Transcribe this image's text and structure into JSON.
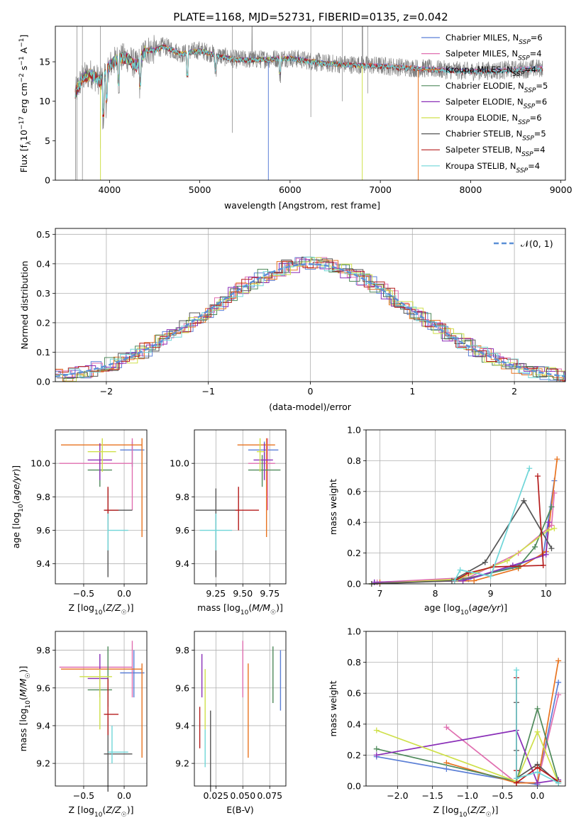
{
  "figure_title": "PLATE=1168, MJD=52731, FIBERID=0135, z=0.042",
  "colors": {
    "Chabrier MILES": "#5b7fd6",
    "Salpeter MILES": "#e06fb0",
    "Kroupa MILES": "#e8731f",
    "Chabrier ELODIE": "#4f8a5b",
    "Salpeter ELODIE": "#8a2fb8",
    "Kroupa ELODIE": "#cfe04a",
    "Chabrier STELIB": "#555555",
    "Salpeter STELIB": "#b51c1c",
    "Kroupa STELIB": "#6fd6d8",
    "data": "#808080"
  },
  "chart_data": [
    {
      "id": "spectrum",
      "type": "line",
      "xlabel": "wavelength [Angstrom, rest frame]",
      "ylabel": "Flux [f_λ10^-17 erg cm^-2 s^-1 A^-1]",
      "xlim": [
        3400,
        9050
      ],
      "ylim": [
        0,
        19.5
      ],
      "xticks": [
        4000,
        5000,
        6000,
        7000,
        8000,
        9000
      ],
      "yticks": [
        0,
        5,
        10,
        15
      ],
      "grid": false,
      "legend_position": "right",
      "series": [
        {
          "name": "Chabrier MILES",
          "nssp": "6"
        },
        {
          "name": "Salpeter MILES",
          "nssp": "4"
        },
        {
          "name": "Kroupa MILES",
          "nssp": "4"
        },
        {
          "name": "Chabrier ELODIE",
          "nssp": "5"
        },
        {
          "name": "Salpeter ELODIE",
          "nssp": "6"
        },
        {
          "name": "Kroupa ELODIE",
          "nssp": "6"
        },
        {
          "name": "Chabrier STELIB",
          "nssp": "5"
        },
        {
          "name": "Salpeter STELIB",
          "nssp": "4"
        },
        {
          "name": "Kroupa STELIB",
          "nssp": "4"
        }
      ],
      "continuum": {
        "x": [
          3620,
          3700,
          3800,
          3900,
          4000,
          4100,
          4200,
          4300,
          4400,
          4500,
          4600,
          4700,
          4800,
          5000,
          5200,
          5400,
          5600,
          6000,
          6400,
          7000,
          7400,
          8000,
          8500,
          8800
        ],
        "y": [
          11,
          13,
          13.5,
          12.5,
          14.5,
          15.5,
          15.5,
          14.5,
          16.5,
          16.5,
          17,
          16.5,
          16,
          16.5,
          15.8,
          15.3,
          15.3,
          15.5,
          14.8,
          14.5,
          14.2,
          13.8,
          14,
          14.2
        ]
      }
    },
    {
      "id": "residuals",
      "type": "step",
      "xlabel": "(data-model)/error",
      "ylabel": "Normed distribution",
      "xlim": [
        -2.5,
        2.5
      ],
      "ylim": [
        0,
        0.52
      ],
      "xticks": [
        -2,
        -1,
        0,
        1,
        2
      ],
      "yticks": [
        0.0,
        0.1,
        0.2,
        0.3,
        0.4,
        0.5
      ],
      "grid": true,
      "legend_position": "top-right",
      "legend_label": "N(0,1)"
    },
    {
      "id": "z_age",
      "type": "errorbar",
      "xlabel": "Z [log10(Z/Z☉)]",
      "ylabel": "age [log10(age/yr)]",
      "xlim": [
        -0.85,
        0.28
      ],
      "ylim": [
        9.28,
        10.2
      ],
      "xticks": [
        -0.5,
        0.0
      ],
      "yticks": [
        9.4,
        9.6,
        9.8,
        10.0
      ],
      "grid": true,
      "points": [
        {
          "model": "Chabrier MILES",
          "x": 0.1,
          "y": 10.08,
          "ex": [
            -0.05,
            0.25
          ],
          "ey": [
            9.98,
            10.13
          ]
        },
        {
          "model": "Salpeter MILES",
          "x": 0.1,
          "y": 10.0,
          "ex": [
            -0.8,
            0.1
          ],
          "ey": [
            9.72,
            10.15
          ]
        },
        {
          "model": "Kroupa MILES",
          "x": 0.22,
          "y": 10.11,
          "ex": [
            -0.78,
            0.22
          ],
          "ey": [
            9.56,
            10.15
          ]
        },
        {
          "model": "Chabrier ELODIE",
          "x": -0.3,
          "y": 9.96,
          "ex": [
            -0.45,
            -0.15
          ],
          "ey": [
            9.86,
            10.05
          ]
        },
        {
          "model": "Salpeter ELODIE",
          "x": -0.3,
          "y": 10.02,
          "ex": [
            -0.45,
            -0.15
          ],
          "ey": [
            9.9,
            10.12
          ]
        },
        {
          "model": "Kroupa ELODIE",
          "x": -0.27,
          "y": 10.07,
          "ex": [
            -0.45,
            -0.1
          ],
          "ey": [
            9.95,
            10.15
          ]
        },
        {
          "model": "Chabrier STELIB",
          "x": -0.2,
          "y": 9.72,
          "ex": [
            -0.25,
            0.1
          ],
          "ey": [
            9.32,
            9.85
          ]
        },
        {
          "model": "Salpeter STELIB",
          "x": -0.2,
          "y": 9.72,
          "ex": [
            -0.25,
            -0.07
          ],
          "ey": [
            9.6,
            9.86
          ]
        },
        {
          "model": "Kroupa STELIB",
          "x": -0.2,
          "y": 9.6,
          "ex": [
            -0.2,
            0.05
          ],
          "ey": [
            9.48,
            9.7
          ]
        }
      ]
    },
    {
      "id": "mass_age",
      "type": "errorbar",
      "xlabel": "mass [log10(M/M☉)]",
      "ylabel": "",
      "xlim": [
        9.05,
        9.9
      ],
      "ylim": [
        9.28,
        10.2
      ],
      "xticks": [
        9.25,
        9.5,
        9.75
      ],
      "yticks": [
        9.4,
        9.6,
        9.8,
        10.0
      ],
      "grid": true,
      "points": [
        {
          "model": "Chabrier MILES",
          "x": 9.7,
          "y": 10.08,
          "ex": [
            9.55,
            9.83
          ],
          "ey": [
            9.98,
            10.13
          ]
        },
        {
          "model": "Salpeter MILES",
          "x": 9.73,
          "y": 10.0,
          "ex": [
            9.55,
            9.8
          ],
          "ey": [
            9.72,
            10.15
          ]
        },
        {
          "model": "Kroupa MILES",
          "x": 9.72,
          "y": 10.11,
          "ex": [
            9.45,
            9.8
          ],
          "ey": [
            9.56,
            10.15
          ]
        },
        {
          "model": "Chabrier ELODIE",
          "x": 9.68,
          "y": 9.96,
          "ex": [
            9.55,
            9.85
          ],
          "ey": [
            9.86,
            10.05
          ]
        },
        {
          "model": "Salpeter ELODIE",
          "x": 9.7,
          "y": 10.02,
          "ex": [
            9.6,
            9.78
          ],
          "ey": [
            9.9,
            10.12
          ]
        },
        {
          "model": "Kroupa ELODIE",
          "x": 9.66,
          "y": 10.07,
          "ex": [
            9.63,
            9.7
          ],
          "ey": [
            9.95,
            10.15
          ]
        },
        {
          "model": "Chabrier STELIB",
          "x": 9.25,
          "y": 9.72,
          "ex": [
            9.06,
            9.45
          ],
          "ey": [
            9.32,
            9.85
          ]
        },
        {
          "model": "Salpeter STELIB",
          "x": 9.46,
          "y": 9.72,
          "ex": [
            9.43,
            9.65
          ],
          "ey": [
            9.6,
            9.86
          ]
        },
        {
          "model": "Kroupa STELIB",
          "x": 9.25,
          "y": 9.6,
          "ex": [
            9.1,
            9.4
          ],
          "ey": [
            9.48,
            9.7
          ]
        }
      ]
    },
    {
      "id": "age_weight",
      "type": "line",
      "xlabel": "age [log10(age/yr)]",
      "ylabel": "mass weight",
      "xlim": [
        6.75,
        10.35
      ],
      "ylim": [
        0,
        1.0
      ],
      "xticks": [
        7,
        8,
        9,
        10
      ],
      "yticks": [
        0.0,
        0.2,
        0.4,
        0.6,
        0.8,
        1.0
      ],
      "grid": true,
      "series": [
        {
          "model": "Chabrier MILES",
          "x": [
            6.9,
            8.6,
            9.4,
            9.95,
            10.15
          ],
          "y": [
            0.01,
            0.03,
            0.11,
            0.19,
            0.67
          ]
        },
        {
          "model": "Salpeter MILES",
          "x": [
            6.95,
            8.6,
            9.5,
            10.1,
            10.15
          ],
          "y": [
            0.01,
            0.04,
            0.2,
            0.38,
            0.59
          ]
        },
        {
          "model": "Kroupa MILES",
          "x": [
            7.0,
            8.7,
            9.5,
            10.0,
            10.2
          ],
          "y": [
            0.01,
            0.02,
            0.1,
            0.21,
            0.81
          ]
        },
        {
          "model": "Chabrier ELODIE",
          "x": [
            6.85,
            8.5,
            9.5,
            9.8,
            10.1
          ],
          "y": [
            0.0,
            0.03,
            0.11,
            0.24,
            0.5
          ]
        },
        {
          "model": "Salpeter ELODIE",
          "x": [
            6.9,
            8.5,
            9.4,
            10.0,
            10.05
          ],
          "y": [
            0.01,
            0.02,
            0.12,
            0.19,
            0.4
          ]
        },
        {
          "model": "Kroupa ELODIE",
          "x": [
            6.85,
            8.4,
            9.3,
            10.05,
            10.15
          ],
          "y": [
            0.0,
            0.03,
            0.15,
            0.35,
            0.36
          ]
        },
        {
          "model": "Chabrier STELIB",
          "x": [
            6.85,
            8.3,
            8.9,
            9.6,
            10.1
          ],
          "y": [
            0.0,
            0.02,
            0.14,
            0.54,
            0.23
          ]
        },
        {
          "model": "Salpeter STELIB",
          "x": [
            8.35,
            8.6,
            9.05,
            9.95,
            9.85
          ],
          "y": [
            0.02,
            0.07,
            0.11,
            0.12,
            0.7
          ]
        },
        {
          "model": "Kroupa STELIB",
          "x": [
            8.35,
            8.45,
            9.0,
            9.7
          ],
          "y": [
            0.02,
            0.09,
            0.05,
            0.75
          ]
        }
      ]
    },
    {
      "id": "z_mass",
      "type": "errorbar",
      "xlabel": "Z [log10(Z/Z☉)]",
      "ylabel": "mass [log10(M/M☉)]",
      "xlim": [
        -0.85,
        0.28
      ],
      "ylim": [
        9.08,
        9.9
      ],
      "xticks": [
        -0.5,
        0.0
      ],
      "yticks": [
        9.2,
        9.4,
        9.6,
        9.8
      ],
      "grid": true,
      "points": [
        {
          "model": "Chabrier MILES",
          "x": 0.12,
          "y": 9.68,
          "ex": [
            -0.05,
            0.25
          ],
          "ey": [
            9.55,
            9.8
          ]
        },
        {
          "model": "Salpeter MILES",
          "x": 0.1,
          "y": 9.71,
          "ex": [
            -0.8,
            0.1
          ],
          "ey": [
            9.55,
            9.85
          ]
        },
        {
          "model": "Kroupa MILES",
          "x": 0.22,
          "y": 9.7,
          "ex": [
            -0.78,
            0.22
          ],
          "ey": [
            9.23,
            9.73
          ]
        },
        {
          "model": "Chabrier ELODIE",
          "x": -0.2,
          "y": 9.59,
          "ex": [
            -0.45,
            -0.15
          ],
          "ey": [
            9.5,
            9.82
          ]
        },
        {
          "model": "Salpeter ELODIE",
          "x": -0.3,
          "y": 9.65,
          "ex": [
            -0.45,
            -0.2
          ],
          "ey": [
            9.55,
            9.78
          ]
        },
        {
          "model": "Kroupa ELODIE",
          "x": -0.3,
          "y": 9.66,
          "ex": [
            -0.55,
            -0.15
          ],
          "ey": [
            9.38,
            9.7
          ]
        },
        {
          "model": "Chabrier STELIB",
          "x": -0.2,
          "y": 9.25,
          "ex": [
            -0.25,
            0.1
          ],
          "ey": [
            9.05,
            9.45
          ]
        },
        {
          "model": "Salpeter STELIB",
          "x": -0.2,
          "y": 9.46,
          "ex": [
            -0.25,
            -0.07
          ],
          "ey": [
            9.35,
            9.65
          ]
        },
        {
          "model": "Kroupa STELIB",
          "x": -0.15,
          "y": 9.26,
          "ex": [
            -0.2,
            0.05
          ],
          "ey": [
            9.2,
            9.4
          ]
        }
      ]
    },
    {
      "id": "ebv_mass",
      "type": "errorbar",
      "xlabel": "E(B-V)",
      "ylabel": "",
      "xlim": [
        0.005,
        0.09
      ],
      "ylim": [
        9.08,
        9.9
      ],
      "xticks": [
        0.025,
        0.05,
        0.075
      ],
      "yticks": [
        9.2,
        9.4,
        9.6,
        9.8
      ],
      "grid": true,
      "points": [
        {
          "model": "Chabrier MILES",
          "x": 0.085,
          "y": 9.64,
          "ex": [
            0.085,
            0.085
          ],
          "ey": [
            9.48,
            9.8
          ]
        },
        {
          "model": "Salpeter MILES",
          "x": 0.05,
          "y": 9.72,
          "ex": [
            0.05,
            0.05
          ],
          "ey": [
            9.55,
            9.85
          ]
        },
        {
          "model": "Kroupa MILES",
          "x": 0.055,
          "y": 9.48,
          "ex": [
            0.055,
            0.055
          ],
          "ey": [
            9.23,
            9.73
          ]
        },
        {
          "model": "Chabrier ELODIE",
          "x": 0.078,
          "y": 9.67,
          "ex": [
            0.078,
            0.078
          ],
          "ey": [
            9.52,
            9.82
          ]
        },
        {
          "model": "Salpeter ELODIE",
          "x": 0.012,
          "y": 9.67,
          "ex": [
            0.012,
            0.012
          ],
          "ey": [
            9.55,
            9.78
          ]
        },
        {
          "model": "Kroupa ELODIE",
          "x": 0.015,
          "y": 9.54,
          "ex": [
            0.015,
            0.015
          ],
          "ey": [
            9.38,
            9.7
          ]
        },
        {
          "model": "Chabrier STELIB",
          "x": 0.02,
          "y": 9.27,
          "ex": [
            0.02,
            0.02
          ],
          "ey": [
            9.05,
            9.48
          ]
        },
        {
          "model": "Salpeter STELIB",
          "x": 0.01,
          "y": 9.4,
          "ex": [
            0.01,
            0.01
          ],
          "ey": [
            9.28,
            9.5
          ]
        },
        {
          "model": "Kroupa STELIB",
          "x": 0.015,
          "y": 9.27,
          "ex": [
            0.015,
            0.015
          ],
          "ey": [
            9.18,
            9.38
          ]
        }
      ]
    },
    {
      "id": "z_weight",
      "type": "line",
      "xlabel": "Z [log10(Z/Z☉)]",
      "ylabel": "mass weight",
      "xlim": [
        -2.45,
        0.4
      ],
      "ylim": [
        0,
        1.0
      ],
      "xticks": [
        -2.0,
        -1.5,
        -1.0,
        -0.5,
        0.0
      ],
      "yticks": [
        0.0,
        0.2,
        0.4,
        0.6,
        0.8,
        1.0
      ],
      "grid": true,
      "series": [
        {
          "model": "Chabrier MILES",
          "x": [
            -2.3,
            -1.3,
            -0.3,
            0.0,
            0.3
          ],
          "y": [
            0.19,
            0.11,
            0.03,
            0.01,
            0.67
          ]
        },
        {
          "model": "Salpeter MILES",
          "x": [
            -1.3,
            -0.3,
            0.0,
            0.3
          ],
          "y": [
            0.38,
            0.02,
            0.02,
            0.59
          ]
        },
        {
          "model": "Kroupa MILES",
          "x": [
            -1.3,
            -0.3,
            0.0,
            0.3
          ],
          "y": [
            0.15,
            0.02,
            0.02,
            0.81
          ]
        },
        {
          "model": "Chabrier ELODIE",
          "x": [
            -2.3,
            -0.3,
            0.0,
            0.3
          ],
          "y": [
            0.24,
            0.03,
            0.5,
            0.03
          ]
        },
        {
          "model": "Salpeter ELODIE",
          "x": [
            -2.3,
            -0.3,
            0.0,
            0.3
          ],
          "y": [
            0.2,
            0.36,
            0.02,
            0.04
          ]
        },
        {
          "model": "Kroupa ELODIE",
          "x": [
            -2.3,
            -0.3,
            0.0,
            0.3
          ],
          "y": [
            0.36,
            0.03,
            0.35,
            0.02
          ]
        },
        {
          "model": "Chabrier STELIB",
          "x": [
            -0.3,
            -0.3,
            -0.3,
            0.0,
            0.3
          ],
          "y": [
            0.54,
            0.23,
            0.05,
            0.14,
            0.02
          ]
        },
        {
          "model": "Salpeter STELIB",
          "x": [
            -0.3,
            -0.3,
            -0.3,
            0.0,
            0.3
          ],
          "y": [
            0.7,
            0.1,
            0.02,
            0.12,
            0.03
          ]
        },
        {
          "model": "Kroupa STELIB",
          "x": [
            -0.3,
            -0.3,
            0.0,
            0.3
          ],
          "y": [
            0.75,
            0.05,
            0.09,
            0.02
          ]
        }
      ]
    }
  ]
}
